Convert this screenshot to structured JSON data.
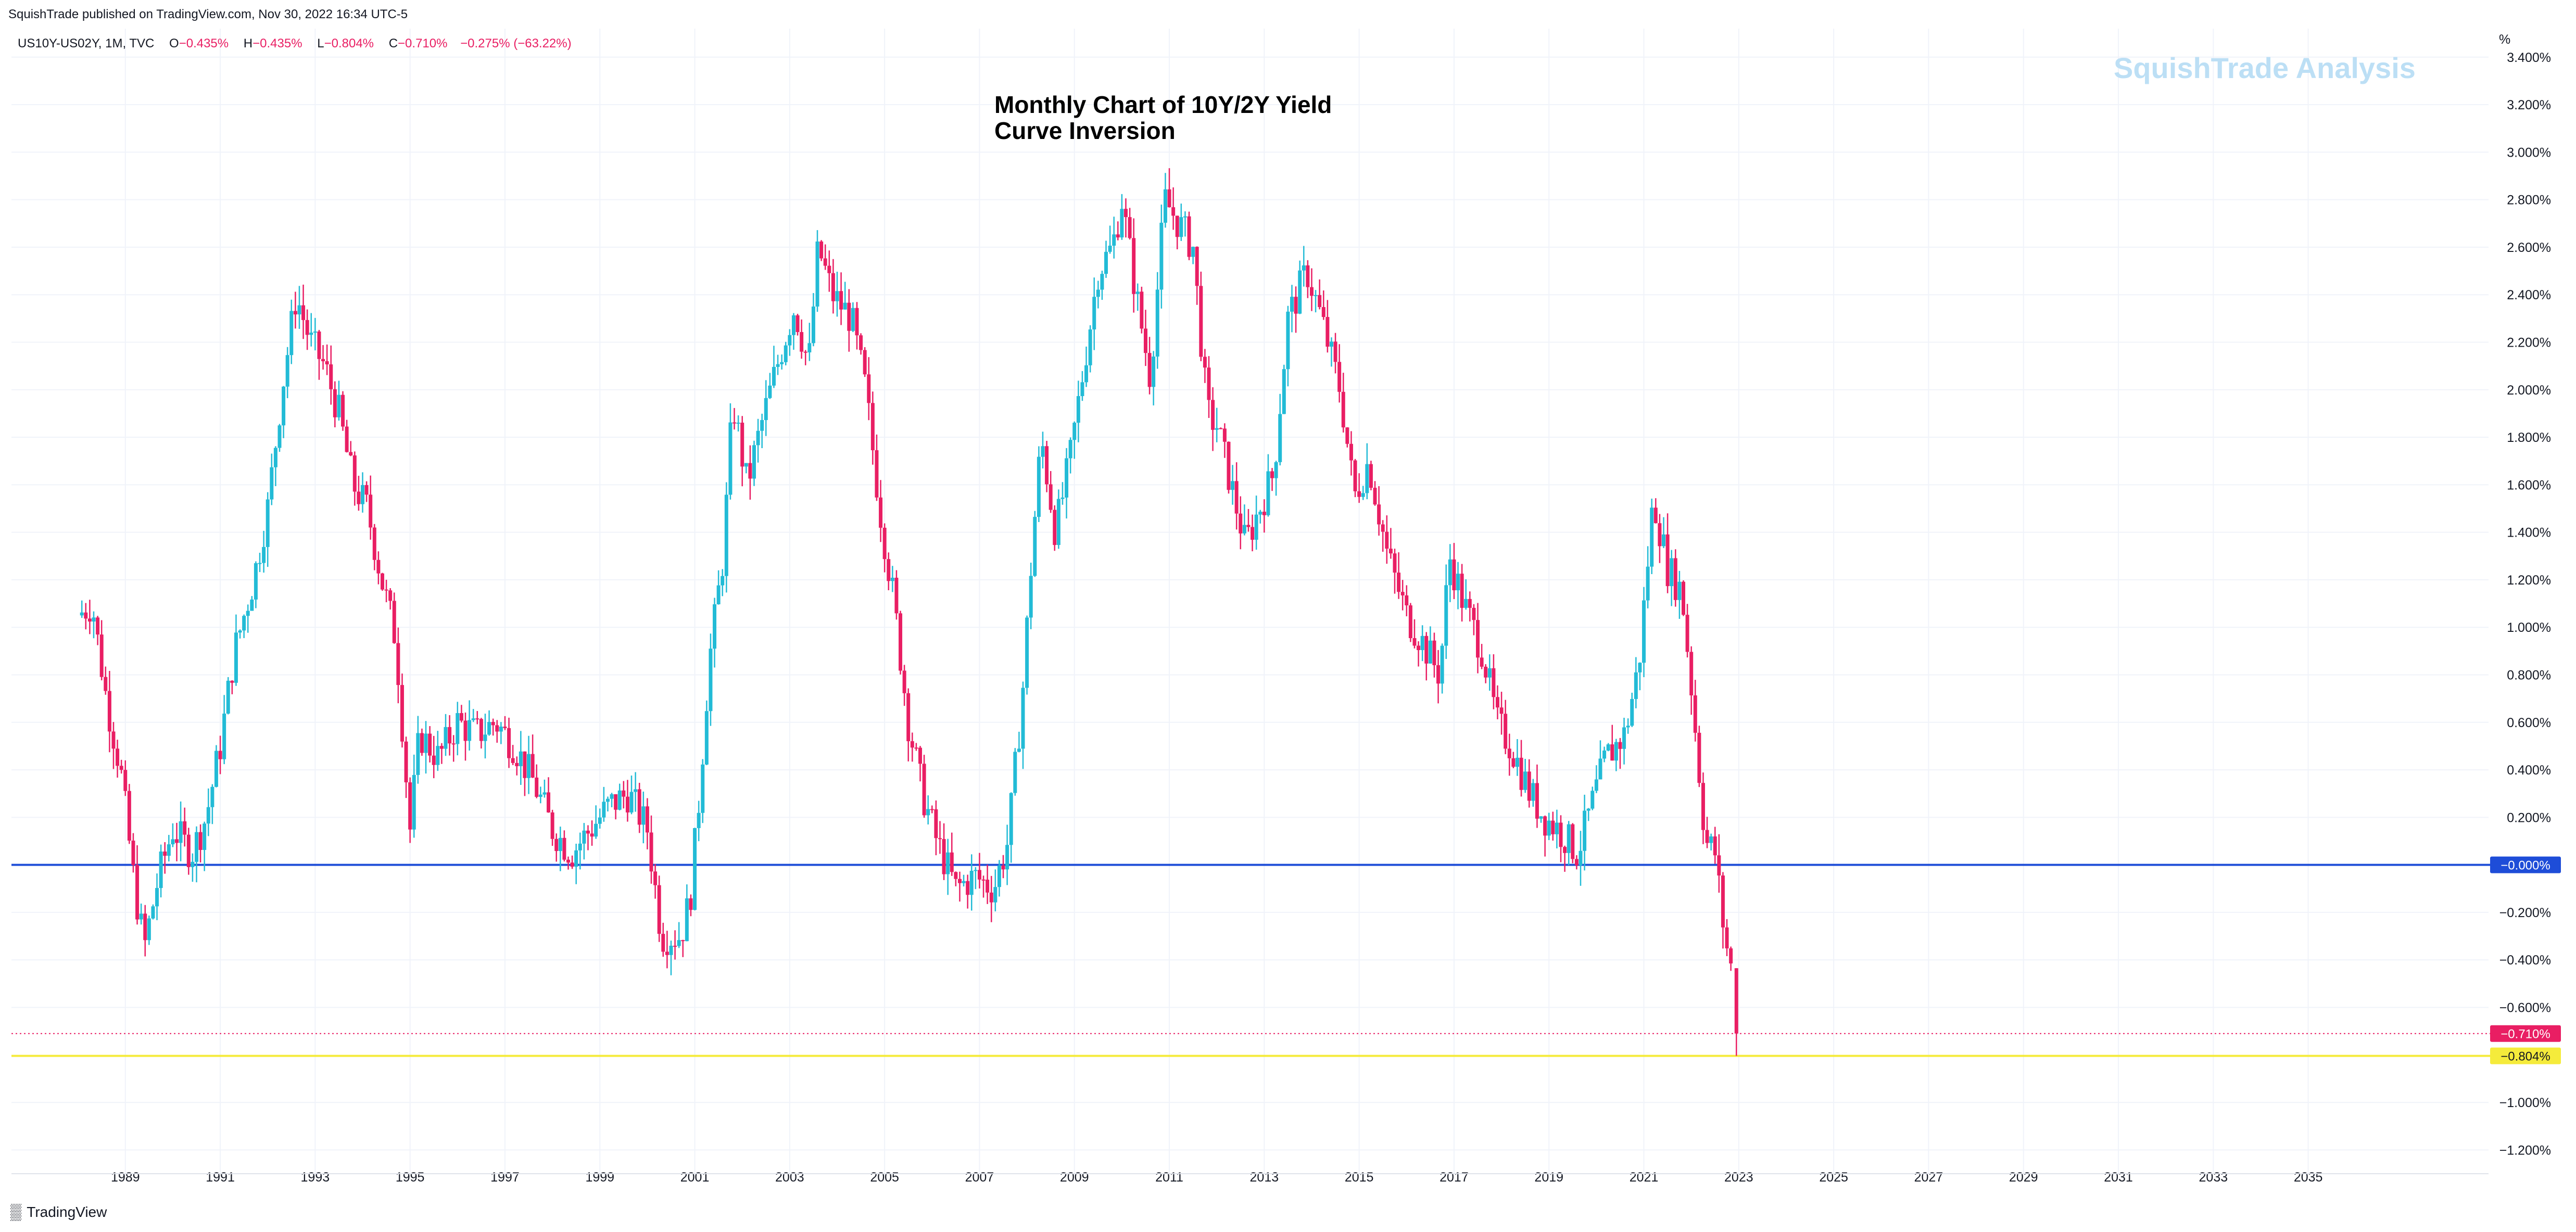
{
  "publisher_line": "SquishTrade published on TradingView.com, Nov 30, 2022 16:34 UTC-5",
  "symbol": "US10Y-US02Y, 1M, TVC",
  "ohlc": {
    "open_label": "O",
    "open": "−0.435%",
    "high_label": "H",
    "high": "−0.435%",
    "low_label": "L",
    "low": "−0.804%",
    "close_label": "C",
    "close": "−0.710%",
    "change": "−0.275% (−63.22%)"
  },
  "watermark": "SquishTrade Analysis",
  "footer_brand": "TradingView",
  "colors": {
    "up": "#22bbd6",
    "down": "#e91e63",
    "zero_line": "#1e4dd8",
    "support_line": "#f5eb3b",
    "grid": "#f0f3fa"
  },
  "chart_data": {
    "type": "candlestick",
    "title": "Monthly Chart of 10Y/2Y Yield Curve Inversion",
    "title_lines": [
      "Monthly Chart of 10Y/2Y Yield",
      "Curve Inversion"
    ],
    "y_unit_label": "%",
    "ylim": [
      -1.3,
      3.52
    ],
    "xlim": [
      1986.6,
      2038.8
    ],
    "y_ticks": [
      3.4,
      3.2,
      3.0,
      2.8,
      2.6,
      2.4,
      2.2,
      2.0,
      1.8,
      1.6,
      1.4,
      1.2,
      1.0,
      0.8,
      0.6,
      0.4,
      0.2,
      -0.2,
      -0.4,
      -0.6,
      -1.0,
      -1.2
    ],
    "y_tick_labels": [
      "3.400%",
      "3.200%",
      "3.000%",
      "2.800%",
      "2.600%",
      "2.400%",
      "2.200%",
      "2.000%",
      "1.800%",
      "1.600%",
      "1.400%",
      "1.200%",
      "1.000%",
      "0.800%",
      "0.600%",
      "0.400%",
      "0.200%",
      "−0.200%",
      "−0.400%",
      "−0.600%",
      "−1.000%",
      "−1.200%"
    ],
    "x_ticks": [
      1989,
      1991,
      1993,
      1995,
      1997,
      1999,
      2001,
      2003,
      2005,
      2007,
      2009,
      2011,
      2013,
      2015,
      2017,
      2019,
      2021,
      2023,
      2025,
      2027,
      2029,
      2031,
      2033,
      2035
    ],
    "x_tick_labels": [
      "1989",
      "1991",
      "1993",
      "1995",
      "1997",
      "1999",
      "2001",
      "2003",
      "2005",
      "2007",
      "2009",
      "2011",
      "2013",
      "2015",
      "2017",
      "2019",
      "2021",
      "2023",
      "2025",
      "2027",
      "2029",
      "2031",
      "2033",
      "2035"
    ],
    "horizontal_lines": [
      {
        "value": 0.0,
        "label": "−0.000%",
        "color": "#1e4dd8",
        "style": "solid"
      },
      {
        "value": -0.804,
        "label": "−0.804%",
        "color": "#f5eb3b",
        "style": "solid"
      },
      {
        "value": -0.71,
        "label": "−0.710%",
        "color": "#e91e63",
        "style": "dotted"
      }
    ],
    "close_path": [
      [
        1988.0,
        1.05
      ],
      [
        1988.3,
        1.1
      ],
      [
        1988.6,
        0.7
      ],
      [
        1988.9,
        0.4
      ],
      [
        1989.2,
        -0.1
      ],
      [
        1989.4,
        -0.35
      ],
      [
        1989.7,
        -0.05
      ],
      [
        1990.0,
        0.15
      ],
      [
        1990.4,
        0.05
      ],
      [
        1990.7,
        0.2
      ],
      [
        1991.0,
        0.5
      ],
      [
        1991.3,
        0.9
      ],
      [
        1991.7,
        1.2
      ],
      [
        1992.0,
        1.5
      ],
      [
        1992.3,
        2.0
      ],
      [
        1992.6,
        2.4
      ],
      [
        1992.9,
        2.2
      ],
      [
        1993.2,
        2.1
      ],
      [
        1993.5,
        1.9
      ],
      [
        1993.8,
        1.6
      ],
      [
        1994.1,
        1.5
      ],
      [
        1994.4,
        1.2
      ],
      [
        1994.7,
        0.95
      ],
      [
        1995.0,
        0.15
      ],
      [
        1995.2,
        0.55
      ],
      [
        1995.6,
        0.45
      ],
      [
        1996.0,
        0.6
      ],
      [
        1996.4,
        0.55
      ],
      [
        1996.8,
        0.6
      ],
      [
        1997.2,
        0.5
      ],
      [
        1997.6,
        0.35
      ],
      [
        1998.0,
        0.15
      ],
      [
        1998.4,
        0.05
      ],
      [
        1998.8,
        0.15
      ],
      [
        1999.2,
        0.25
      ],
      [
        1999.6,
        0.3
      ],
      [
        2000.0,
        0.15
      ],
      [
        2000.3,
        -0.3
      ],
      [
        2000.7,
        -0.3
      ],
      [
        2000.9,
        -0.15
      ],
      [
        2001.1,
        0.3
      ],
      [
        2001.3,
        0.85
      ],
      [
        2001.6,
        1.3
      ],
      [
        2001.8,
        1.95
      ],
      [
        2002.1,
        1.6
      ],
      [
        2002.4,
        1.85
      ],
      [
        2002.8,
        2.15
      ],
      [
        2003.1,
        2.35
      ],
      [
        2003.4,
        2.1
      ],
      [
        2003.6,
        2.6
      ],
      [
        2003.9,
        2.4
      ],
      [
        2004.3,
        2.3
      ],
      [
        2004.6,
        2.0
      ],
      [
        2004.9,
        1.5
      ],
      [
        2005.2,
        1.1
      ],
      [
        2005.5,
        0.6
      ],
      [
        2005.8,
        0.3
      ],
      [
        2006.1,
        0.1
      ],
      [
        2006.5,
        -0.1
      ],
      [
        2006.9,
        -0.05
      ],
      [
        2007.3,
        -0.1
      ],
      [
        2007.6,
        0.1
      ],
      [
        2007.9,
        0.7
      ],
      [
        2008.1,
        1.3
      ],
      [
        2008.3,
        1.8
      ],
      [
        2008.6,
        1.4
      ],
      [
        2008.9,
        1.7
      ],
      [
        2009.2,
        2.1
      ],
      [
        2009.5,
        2.5
      ],
      [
        2009.8,
        2.6
      ],
      [
        2010.0,
        2.8
      ],
      [
        2010.3,
        2.4
      ],
      [
        2010.6,
        2.05
      ],
      [
        2010.9,
        2.8
      ],
      [
        2011.2,
        2.7
      ],
      [
        2011.5,
        2.6
      ],
      [
        2011.8,
        1.9
      ],
      [
        2012.0,
        1.85
      ],
      [
        2012.3,
        1.6
      ],
      [
        2012.6,
        1.35
      ],
      [
        2012.9,
        1.5
      ],
      [
        2013.2,
        1.65
      ],
      [
        2013.5,
        2.3
      ],
      [
        2013.9,
        2.5
      ],
      [
        2014.2,
        2.3
      ],
      [
        2014.6,
        2.0
      ],
      [
        2014.9,
        1.55
      ],
      [
        2015.2,
        1.7
      ],
      [
        2015.6,
        1.3
      ],
      [
        2016.0,
        1.05
      ],
      [
        2016.3,
        0.95
      ],
      [
        2016.7,
        0.8
      ],
      [
        2016.9,
        1.3
      ],
      [
        2017.2,
        1.1
      ],
      [
        2017.6,
        0.9
      ],
      [
        2017.9,
        0.6
      ],
      [
        2018.2,
        0.5
      ],
      [
        2018.6,
        0.3
      ],
      [
        2018.9,
        0.2
      ],
      [
        2019.2,
        0.15
      ],
      [
        2019.6,
        0.05
      ],
      [
        2019.9,
        0.25
      ],
      [
        2020.2,
        0.45
      ],
      [
        2020.6,
        0.55
      ],
      [
        2020.9,
        0.85
      ],
      [
        2021.2,
        1.55
      ],
      [
        2021.5,
        1.25
      ],
      [
        2021.8,
        1.15
      ],
      [
        2022.0,
        0.75
      ],
      [
        2022.3,
        0.1
      ],
      [
        2022.5,
        0.05
      ],
      [
        2022.7,
        -0.3
      ],
      [
        2022.85,
        -0.45
      ],
      [
        2022.95,
        -0.71
      ]
    ],
    "last_bar": {
      "open": -0.435,
      "high": -0.435,
      "low": -0.804,
      "close": -0.71
    }
  }
}
